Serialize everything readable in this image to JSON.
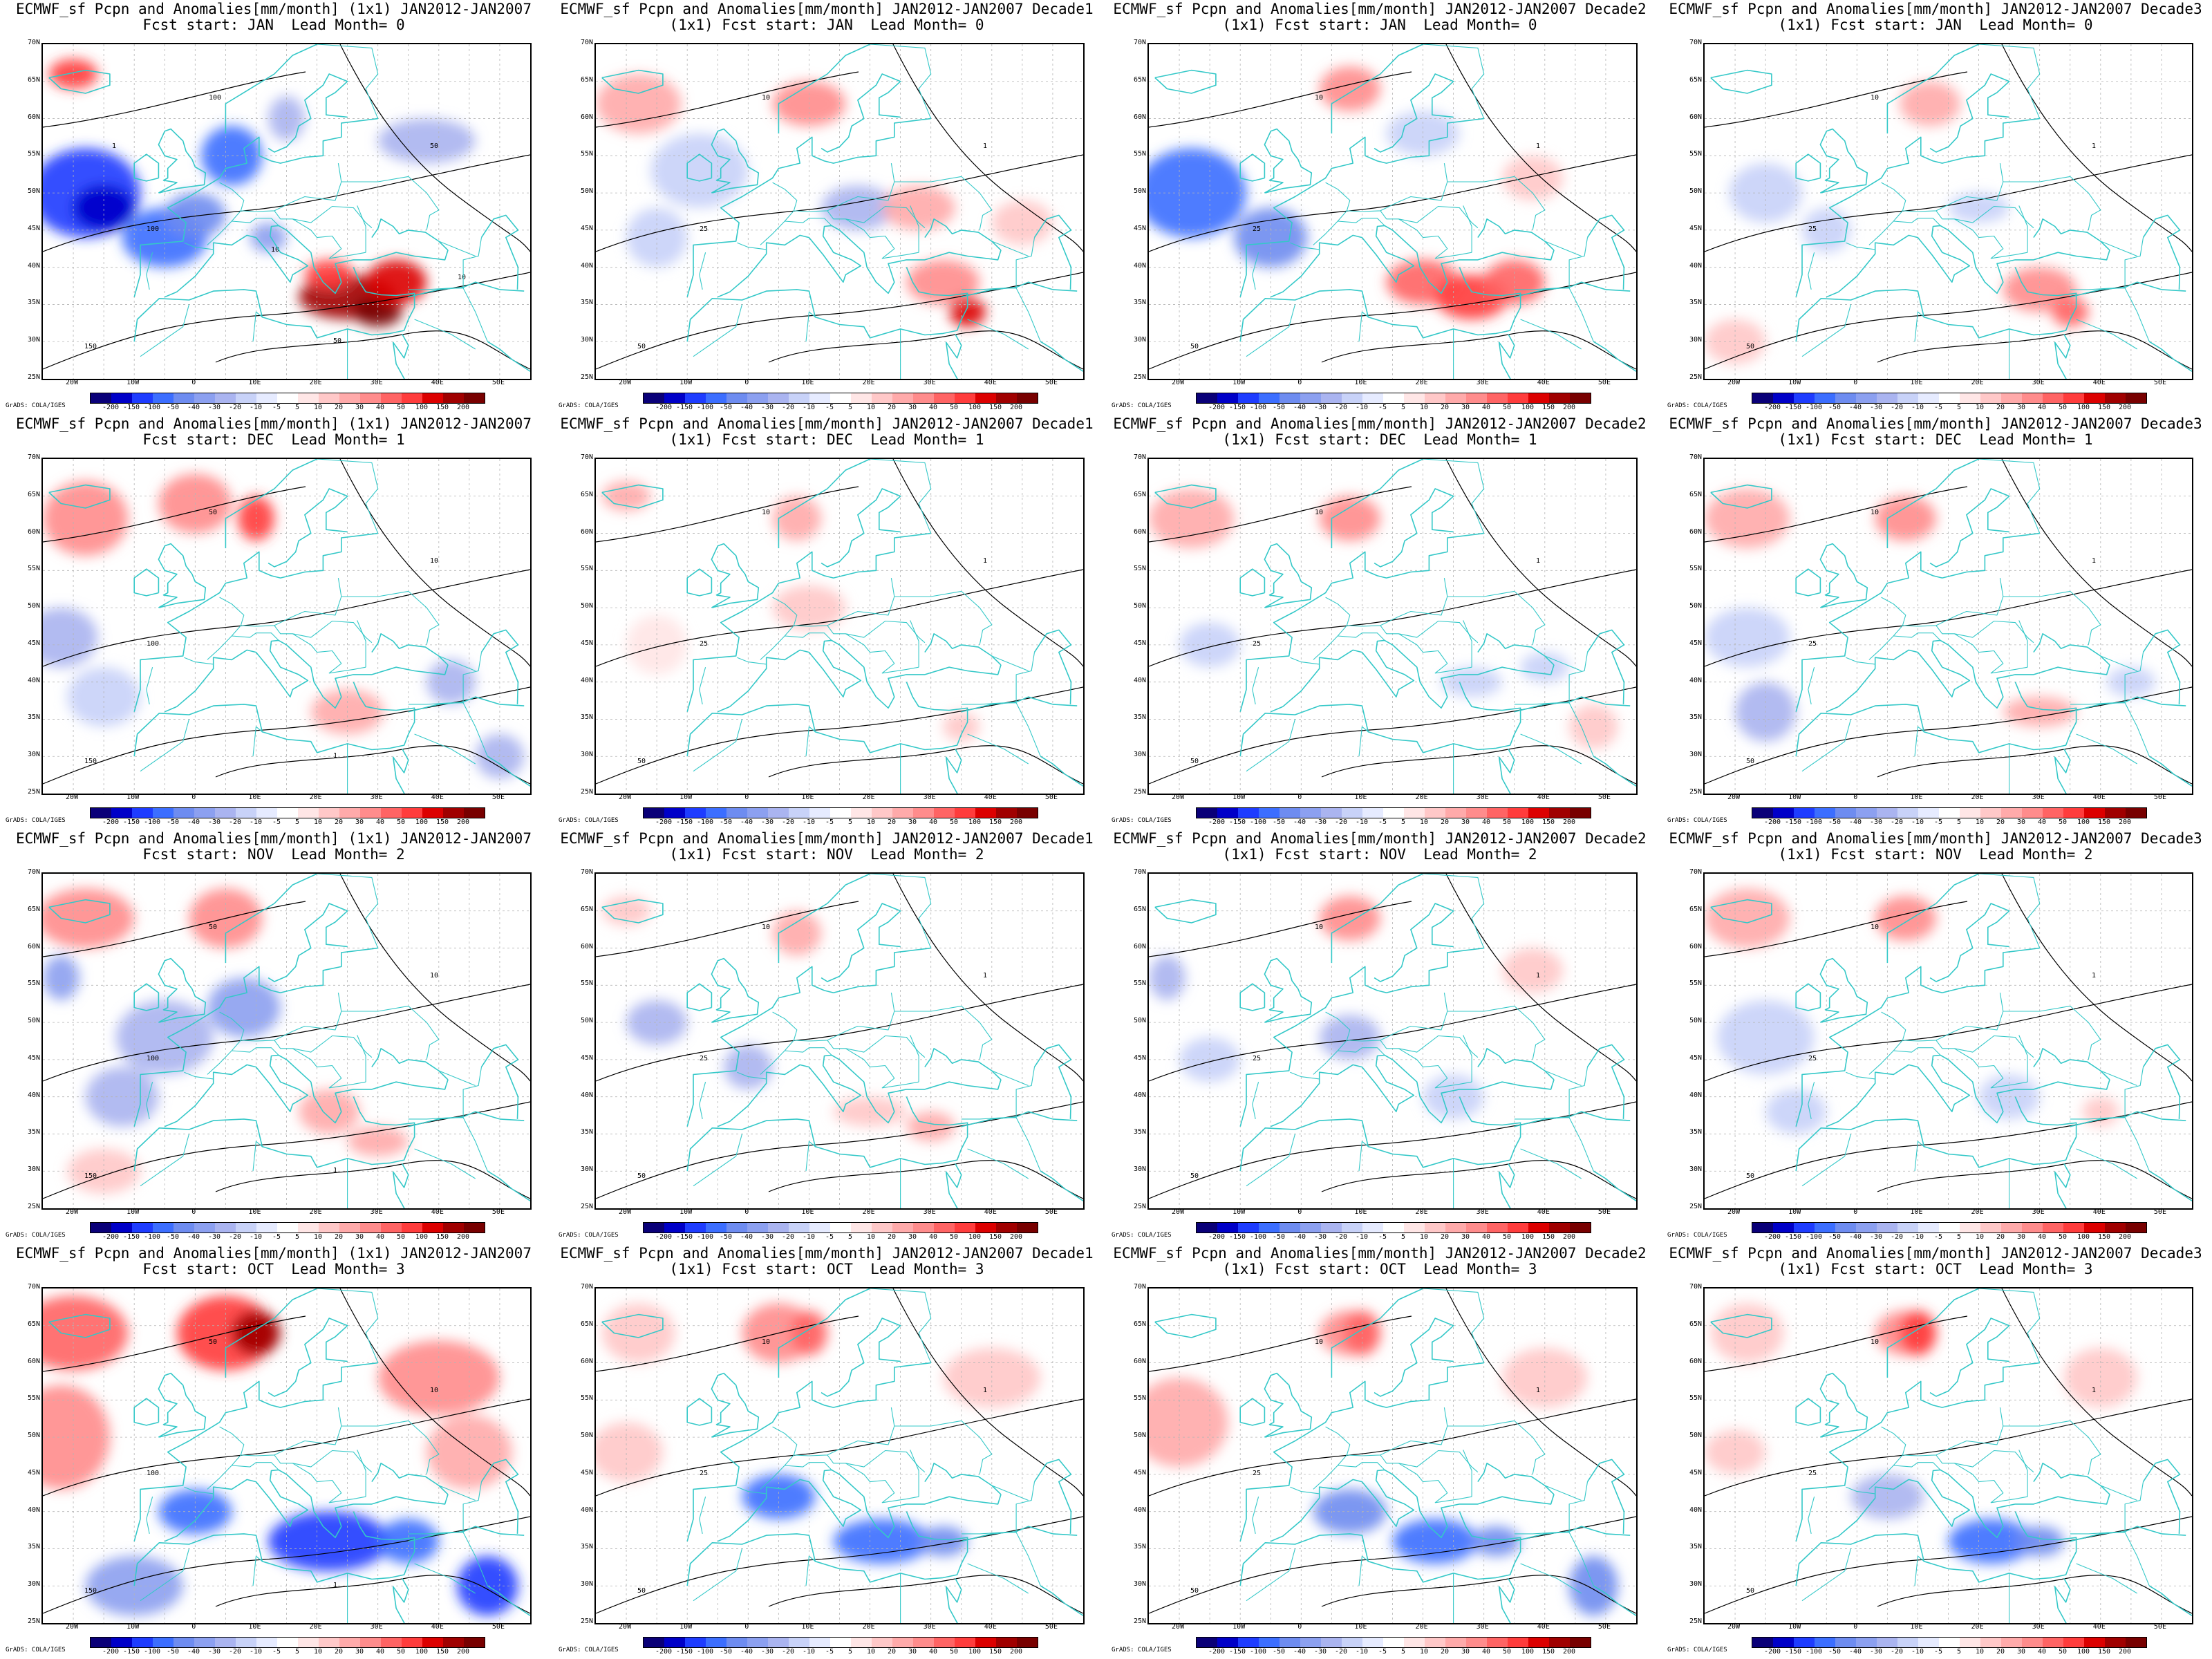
{
  "panels": [
    {
      "title1": "ECMWF_sf Pcpn and Anomalies[mm/month] (1x1) JAN2012-JAN2007",
      "title2": "Fcst start: JAN  Lead Month= 0",
      "contours": [
        "150",
        "100",
        "100",
        "50",
        "50",
        "10",
        "10",
        "1"
      ]
    },
    {
      "title1": "ECMWF_sf Pcpn and Anomalies[mm/month] JAN2012-JAN2007 Decade1",
      "title2": "(1x1) Fcst start: JAN  Lead Month= 0",
      "contours": [
        "50",
        "25",
        "10",
        "1"
      ]
    },
    {
      "title1": "ECMWF_sf Pcpn and Anomalies[mm/month] JAN2012-JAN2007 Decade2",
      "title2": "(1x1) Fcst start: JAN  Lead Month= 0",
      "contours": [
        "50",
        "25",
        "10",
        "1"
      ]
    },
    {
      "title1": "ECMWF_sf Pcpn and Anomalies[mm/month] JAN2012-JAN2007 Decade3",
      "title2": "(1x1) Fcst start: JAN  Lead Month= 0",
      "contours": [
        "50",
        "25",
        "10",
        "1"
      ]
    },
    {
      "title1": "ECMWF_sf Pcpn and Anomalies[mm/month] (1x1) JAN2012-JAN2007",
      "title2": "Fcst start: DEC  Lead Month= 1",
      "contours": [
        "150",
        "100",
        "50",
        "10",
        "1"
      ]
    },
    {
      "title1": "ECMWF_sf Pcpn and Anomalies[mm/month] JAN2012-JAN2007 Decade1",
      "title2": "(1x1) Fcst start: DEC  Lead Month= 1",
      "contours": [
        "50",
        "25",
        "10",
        "1"
      ]
    },
    {
      "title1": "ECMWF_sf Pcpn and Anomalies[mm/month] JAN2012-JAN2007 Decade2",
      "title2": "(1x1) Fcst start: DEC  Lead Month= 1",
      "contours": [
        "50",
        "25",
        "10",
        "1"
      ]
    },
    {
      "title1": "ECMWF_sf Pcpn and Anomalies[mm/month] JAN2012-JAN2007 Decade3",
      "title2": "(1x1) Fcst start: DEC  Lead Month= 1",
      "contours": [
        "50",
        "25",
        "10",
        "1"
      ]
    },
    {
      "title1": "ECMWF_sf Pcpn and Anomalies[mm/month] (1x1) JAN2012-JAN2007",
      "title2": "Fcst start: NOV  Lead Month= 2",
      "contours": [
        "150",
        "100",
        "50",
        "10",
        "1"
      ]
    },
    {
      "title1": "ECMWF_sf Pcpn and Anomalies[mm/month] JAN2012-JAN2007 Decade1",
      "title2": "(1x1) Fcst start: NOV  Lead Month= 2",
      "contours": [
        "50",
        "25",
        "10",
        "1"
      ]
    },
    {
      "title1": "ECMWF_sf Pcpn and Anomalies[mm/month] JAN2012-JAN2007 Decade2",
      "title2": "(1x1) Fcst start: NOV  Lead Month= 2",
      "contours": [
        "50",
        "25",
        "10",
        "1"
      ]
    },
    {
      "title1": "ECMWF_sf Pcpn and Anomalies[mm/month] JAN2012-JAN2007 Decade3",
      "title2": "(1x1) Fcst start: NOV  Lead Month= 2",
      "contours": [
        "50",
        "25",
        "10",
        "1"
      ]
    },
    {
      "title1": "ECMWF_sf Pcpn and Anomalies[mm/month] (1x1) JAN2012-JAN2007",
      "title2": "Fcst start: OCT  Lead Month= 3",
      "contours": [
        "150",
        "100",
        "50",
        "10",
        "1"
      ]
    },
    {
      "title1": "ECMWF_sf Pcpn and Anomalies[mm/month] JAN2012-JAN2007 Decade1",
      "title2": "(1x1) Fcst start: OCT  Lead Month= 3",
      "contours": [
        "50",
        "25",
        "10",
        "1"
      ]
    },
    {
      "title1": "ECMWF_sf Pcpn and Anomalies[mm/month] JAN2012-JAN2007 Decade2",
      "title2": "(1x1) Fcst start: OCT  Lead Month= 3",
      "contours": [
        "50",
        "25",
        "10",
        "1"
      ]
    },
    {
      "title1": "ECMWF_sf Pcpn and Anomalies[mm/month] JAN2012-JAN2007 Decade3",
      "title2": "(1x1) Fcst start: OCT  Lead Month= 3",
      "contours": [
        "50",
        "25",
        "10",
        "1"
      ]
    }
  ],
  "lat_ticks": [
    "70N",
    "65N",
    "60N",
    "55N",
    "50N",
    "45N",
    "40N",
    "35N",
    "30N",
    "25N"
  ],
  "lon_ticks": [
    "20W",
    "10W",
    "0",
    "10E",
    "20E",
    "30E",
    "40E",
    "50E"
  ],
  "colorbar": {
    "labels": [
      "-200",
      "-150",
      "-100",
      "-50",
      "-40",
      "-30",
      "-20",
      "-10",
      "-5",
      "5",
      "10",
      "20",
      "30",
      "40",
      "50",
      "100",
      "150",
      "200"
    ],
    "colors": [
      "#0a0078",
      "#0000c8",
      "#1e3cff",
      "#3c6eff",
      "#6e8cf0",
      "#8ca0f0",
      "#aab4f0",
      "#c8d2f8",
      "#e6ebff",
      "#ffffff",
      "#ffe6e6",
      "#ffc8c8",
      "#ffaaaa",
      "#ff8c8c",
      "#ff6464",
      "#ff3c3c",
      "#dc0000",
      "#a00000",
      "#780000"
    ]
  },
  "credit": "GrADS: COLA/IGES",
  "colors": {
    "coast": "#34c8c8",
    "contour": "#000000",
    "grid": "#b4b4b4"
  }
}
